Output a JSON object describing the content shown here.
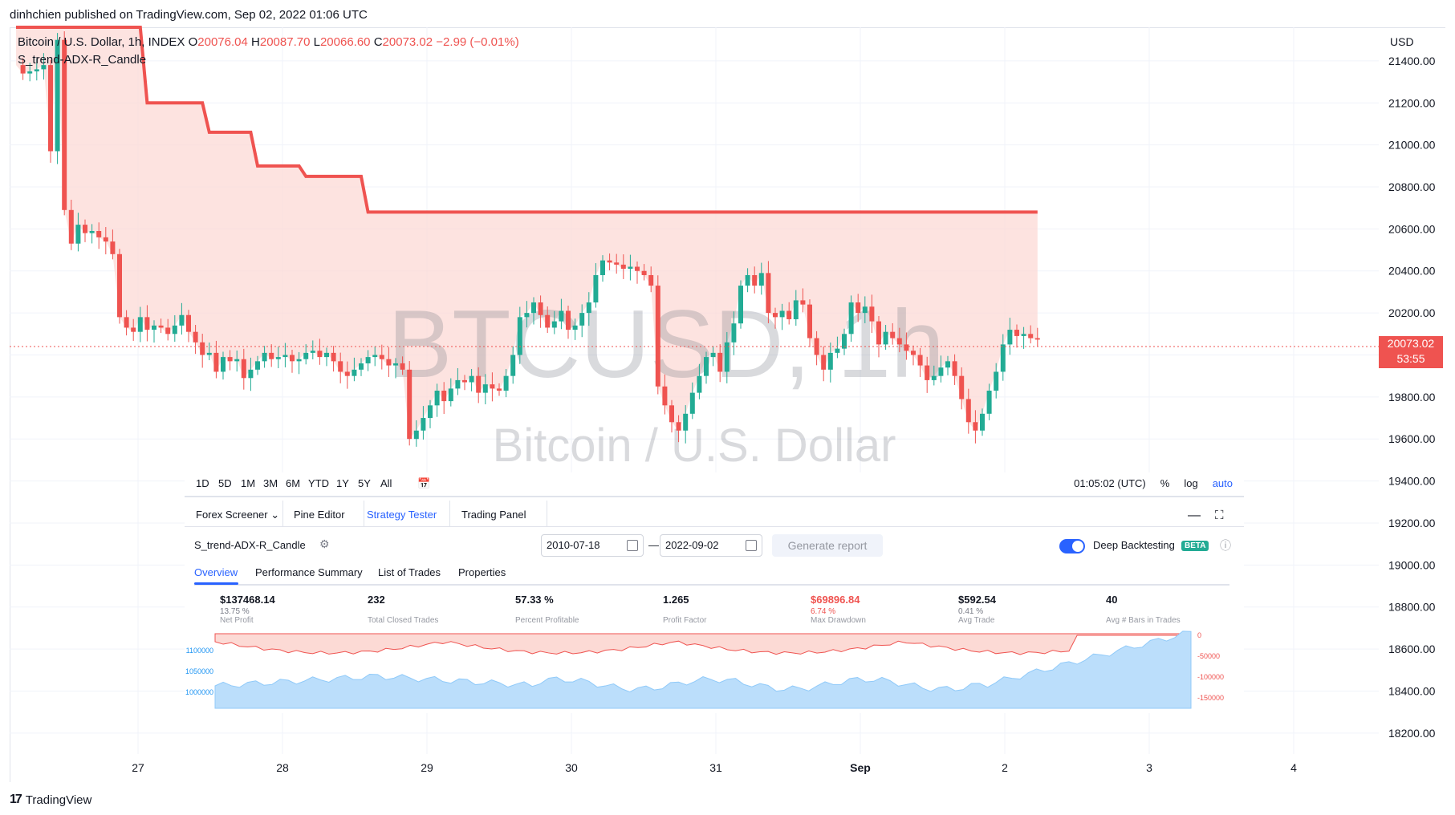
{
  "header": {
    "publish_line": "dinhchien published on TradingView.com, Sep 02, 2022 01:06 UTC"
  },
  "legend": {
    "symbol": "Bitcoin / U.S. Dollar, 1h, INDEX",
    "o_label": "O",
    "o_value": "20076.04",
    "h_label": "H",
    "h_value": "20087.70",
    "l_label": "L",
    "l_value": "20066.60",
    "c_label": "C",
    "c_value": "20073.02",
    "change": "−2.99 (−0.01%)",
    "indicator": "S_trend-ADX-R_Candle"
  },
  "watermark": {
    "big": "BTCUSD, 1h",
    "sub": "Bitcoin / U.S. Dollar"
  },
  "price_axis": {
    "currency": "USD",
    "ticks": [
      "21400.00",
      "21200.00",
      "21000.00",
      "20800.00",
      "20600.00",
      "20400.00",
      "20200.00",
      "20000.00",
      "19800.00",
      "19600.00",
      "19400.00",
      "19200.00",
      "19000.00",
      "18800.00",
      "18600.00",
      "18400.00",
      "18200.00"
    ],
    "tick_values": [
      21400,
      21200,
      21000,
      20800,
      20600,
      20400,
      20200,
      20000,
      19800,
      19600,
      19400,
      19200,
      19000,
      18800,
      18600,
      18400,
      18200
    ],
    "last_price": "20073.02",
    "countdown": "53:55"
  },
  "time_axis": {
    "labels": [
      "27",
      "28",
      "29",
      "30",
      "31",
      "Sep",
      "2",
      "3",
      "4"
    ]
  },
  "range_bar": {
    "ranges": [
      "1D",
      "5D",
      "1M",
      "3M",
      "6M",
      "YTD",
      "1Y",
      "5Y",
      "All"
    ],
    "time": "01:05:02 (UTC)",
    "percent": "%",
    "log": "log",
    "auto": "auto"
  },
  "panel_tabs": [
    "Forex Screener",
    "Pine Editor",
    "Strategy Tester",
    "Trading Panel"
  ],
  "strategy": {
    "name": "S_trend-ADX-R_Candle",
    "date_from": "2010-07-18",
    "date_to": "2022-09-02",
    "date_sep": "—",
    "generate_label": "Generate report",
    "deep_label": "Deep Backtesting",
    "beta": "BETA"
  },
  "subtabs": [
    "Overview",
    "Performance Summary",
    "List of Trades",
    "Properties"
  ],
  "metrics": [
    {
      "value": "$137468.14",
      "pct": "13.75 %",
      "label": "Net Profit"
    },
    {
      "value": "232",
      "pct": "",
      "label": "Total Closed Trades"
    },
    {
      "value": "57.33 %",
      "pct": "",
      "label": "Percent Profitable"
    },
    {
      "value": "1.265",
      "pct": "",
      "label": "Profit Factor"
    },
    {
      "value": "$69896.84",
      "pct": "6.74 %",
      "label": "Max Drawdown"
    },
    {
      "value": "$592.54",
      "pct": "0.41 %",
      "label": "Avg Trade"
    },
    {
      "value": "40",
      "pct": "",
      "label": "Avg # Bars in Trades"
    }
  ],
  "equity_axis": {
    "left": [
      "1100000",
      "1050000",
      "1000000"
    ],
    "right": [
      "0",
      "-50000",
      "-100000",
      "-150000"
    ]
  },
  "footer": {
    "brand": "TradingView"
  },
  "colors": {
    "up": "#22ab94",
    "down": "#ef5350",
    "accent": "#2962ff",
    "equity": "#bbdefb",
    "drawdown": "#fcdad5"
  },
  "chart_data": {
    "type": "candlestick",
    "title": "Bitcoin / U.S. Dollar, 1h, INDEX",
    "ylim": [
      18100,
      21560
    ],
    "close_series": [
      21380,
      21340,
      21350,
      21360,
      21380,
      20970,
      21500,
      20690,
      20530,
      20620,
      20580,
      20590,
      20560,
      20540,
      20480,
      20180,
      20130,
      20110,
      20180,
      20120,
      20140,
      20130,
      20100,
      20140,
      20190,
      20110,
      20060,
      20000,
      20010,
      19920,
      19990,
      19970,
      19980,
      19890,
      19930,
      19970,
      20010,
      19980,
      19990,
      20000,
      19970,
      19980,
      20010,
      20020,
      19990,
      20010,
      19970,
      19920,
      19900,
      19930,
      19960,
      19990,
      20000,
      19980,
      19950,
      19960,
      19930,
      19600,
      19640,
      19700,
      19760,
      19830,
      19780,
      19840,
      19880,
      19870,
      19900,
      19820,
      19860,
      19840,
      19830,
      19900,
      20000,
      20180,
      20200,
      20250,
      20190,
      20130,
      20160,
      20210,
      20120,
      20140,
      20200,
      20250,
      20380,
      20450,
      20440,
      20430,
      20410,
      20420,
      20400,
      20380,
      20330,
      19850,
      19760,
      19680,
      19640,
      19720,
      19820,
      19900,
      19990,
      20010,
      19920,
      20060,
      20150,
      20330,
      20380,
      20330,
      20390,
      20200,
      20180,
      20210,
      20170,
      20260,
      20240,
      20080,
      20000,
      19930,
      20010,
      20030,
      20100,
      20250,
      20200,
      20230,
      20160,
      20050,
      20110,
      20080,
      20050,
      20020,
      20000,
      19950,
      19880,
      19900,
      19940,
      19970,
      19900,
      19790,
      19680,
      19640,
      19720,
      19830,
      19920,
      20050,
      20120,
      20090,
      20100,
      20080,
      20073
    ],
    "upper_band": [
      21560,
      21560,
      21560,
      21560,
      21560,
      21560,
      21560,
      21560,
      21560,
      21560,
      21560,
      21560,
      21560,
      21560,
      21560,
      21560,
      21560,
      21560,
      21560,
      21200,
      21200,
      21200,
      21200,
      21200,
      21200,
      21200,
      21200,
      21200,
      21060,
      21060,
      21060,
      21060,
      21060,
      21060,
      21060,
      20900,
      20900,
      20900,
      20900,
      20900,
      20900,
      20900,
      20850,
      20850,
      20850,
      20850,
      20850,
      20850,
      20850,
      20850,
      20850,
      20680,
      20680,
      20680,
      20680,
      20680,
      20680,
      20680,
      20680,
      20680,
      20680,
      20680,
      20680,
      20680,
      20680,
      20680,
      20680,
      20680,
      20680,
      20680,
      20680,
      20680,
      20680,
      20680,
      20680,
      20680,
      20680,
      20680,
      20680,
      20680,
      20680,
      20680,
      20680,
      20680,
      20680,
      20680,
      20680,
      20680,
      20680,
      20680,
      20680,
      20680,
      20680,
      20680,
      20680,
      20680,
      20680,
      20680,
      20680,
      20680,
      20680,
      20680,
      20680,
      20680,
      20680,
      20680,
      20680,
      20680,
      20680,
      20680,
      20680,
      20680,
      20680,
      20680,
      20680,
      20680,
      20680,
      20680,
      20680,
      20680,
      20680,
      20680,
      20680,
      20680,
      20680,
      20680,
      20680,
      20680,
      20680,
      20680,
      20680,
      20680,
      20680,
      20680,
      20680,
      20680,
      20680,
      20680,
      20680,
      20680,
      20680,
      20680,
      20680,
      20680,
      20680,
      20680,
      20680,
      20680,
      20680
    ]
  }
}
